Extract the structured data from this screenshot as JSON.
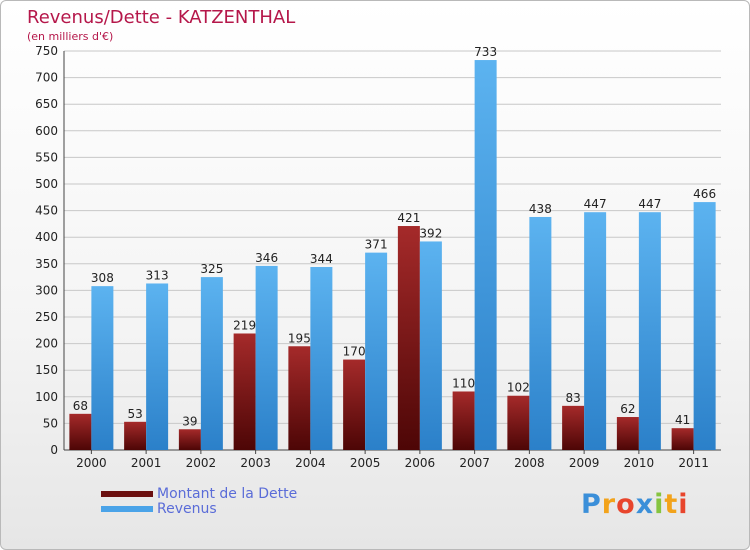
{
  "title": "Revenus/Dette - KATZENTHAL",
  "subtitle": "(en milliers d'€)",
  "chart_data": {
    "type": "bar",
    "categories": [
      "2000",
      "2001",
      "2002",
      "2003",
      "2004",
      "2005",
      "2006",
      "2007",
      "2008",
      "2009",
      "2010",
      "2011"
    ],
    "series": [
      {
        "name": "Montant de la Dette",
        "color": "#7a1515",
        "values": [
          68,
          53,
          39,
          219,
          195,
          170,
          421,
          110,
          102,
          83,
          62,
          41
        ]
      },
      {
        "name": "Revenus",
        "color": "#4aa3e8",
        "values": [
          308,
          313,
          325,
          346,
          344,
          371,
          392,
          733,
          438,
          447,
          447,
          466
        ]
      }
    ],
    "ylim": [
      0,
      750
    ],
    "yticks": [
      0,
      50,
      100,
      150,
      200,
      250,
      300,
      350,
      400,
      450,
      500,
      550,
      600,
      650,
      700,
      750
    ],
    "grid": true,
    "legend_position": "bottom-left"
  },
  "legend": [
    {
      "label": "Montant de la Dette",
      "color": "#6b0f0f"
    },
    {
      "label": "Revenus",
      "color": "#4aa3e8"
    }
  ],
  "logo": {
    "letters": [
      "P",
      "r",
      "o",
      "x",
      "i",
      "t",
      "i"
    ],
    "colors": [
      "#3b8fd9",
      "#f2a31b",
      "#e8452c",
      "#3b8fd9",
      "#86c440",
      "#f2a31b",
      "#e8452c"
    ]
  }
}
